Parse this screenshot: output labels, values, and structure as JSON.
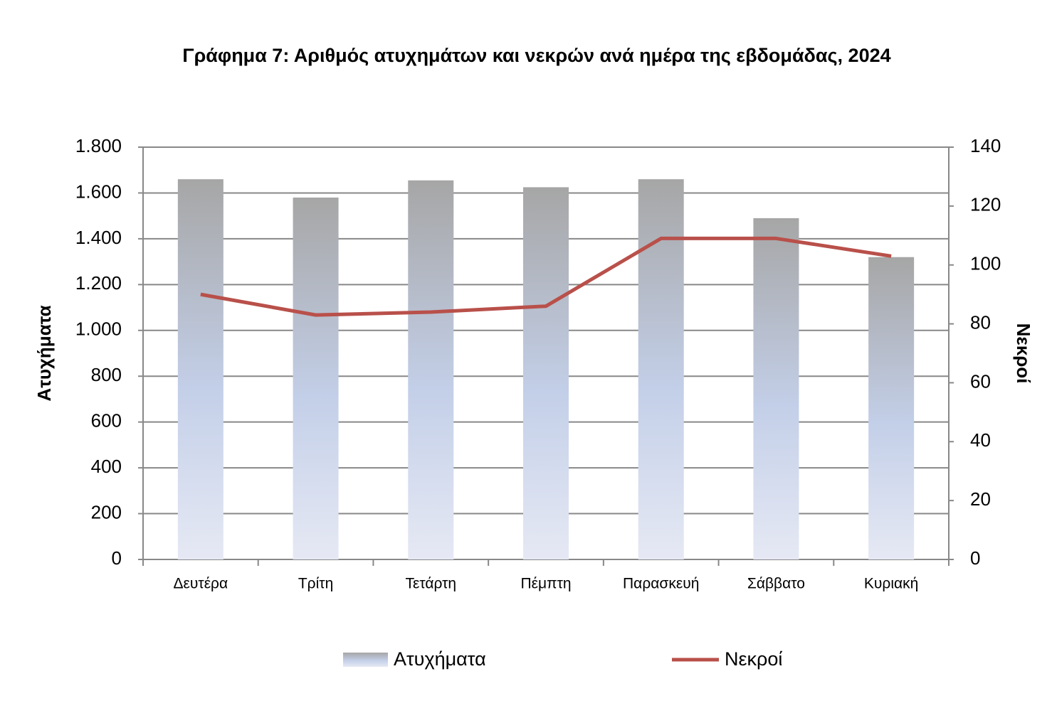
{
  "chart_data": {
    "type": "bar-line",
    "title": "Γράφημα 7: Αριθμός ατυχημάτων και νεκρών ανά ημέρα της εβδομάδας, 2024",
    "y_label": "Ατυχήματα",
    "y2_label": "Νεκροί",
    "categories": [
      "Δευτέρα",
      "Τρίτη",
      "Τετάρτη",
      "Πέμπτη",
      "Παρασκευή",
      "Σάββατο",
      "Κυριακή"
    ],
    "series": [
      {
        "name": "Ατυχήματα",
        "type": "bar",
        "color": "#a6a6a6",
        "values": [
          1660,
          1580,
          1655,
          1625,
          1660,
          1490,
          1320
        ]
      },
      {
        "name": "Νεκροί",
        "type": "line",
        "axis": "y2",
        "color": "#b9504a",
        "values": [
          90,
          83,
          84,
          86,
          109,
          109,
          103
        ]
      }
    ],
    "ylim": [
      0,
      1800
    ],
    "yticks": [
      0,
      200,
      400,
      600,
      800,
      {
        "value": 1000,
        "label": "1.000"
      },
      {
        "value": 1200,
        "label": "1.200"
      },
      {
        "value": 1400,
        "label": "1.400"
      },
      {
        "value": 1600,
        "label": "1.600"
      },
      {
        "value": 1800,
        "label": "1.800"
      }
    ],
    "y2lim": [
      0,
      140
    ],
    "y2ticks": [
      0,
      20,
      40,
      60,
      80,
      100,
      120,
      140
    ],
    "grid": true,
    "legend": "bottom"
  }
}
